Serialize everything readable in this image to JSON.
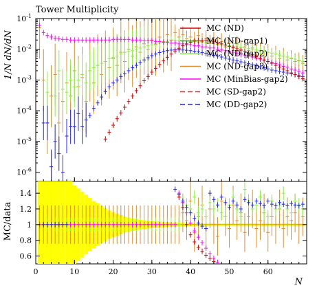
{
  "chart_data": {
    "type": "scatter",
    "title": "Tower Multiplicity",
    "xlabel": "N",
    "ylabel": "1/N dN/dN",
    "ratio_ylabel": "MC/data",
    "xlim": [
      0,
      70
    ],
    "ylim": [
      5e-07,
      0.1
    ],
    "yscale": "log",
    "ratio_ylim": [
      0.5,
      1.55
    ],
    "x_ticks": [
      "0",
      "10",
      "20",
      "30",
      "40",
      "50",
      "60"
    ],
    "y_ticks": [
      "10^-6",
      "10^-5",
      "10^-4",
      "10^-3",
      "10^-2",
      "10^-1"
    ],
    "ratio_ticks": [
      "0.6",
      "0.8",
      "1",
      "1.2",
      "1.4"
    ],
    "legend_position": "top-right",
    "x": [
      1,
      2,
      3,
      4,
      5,
      6,
      7,
      8,
      9,
      10,
      11,
      12,
      13,
      14,
      15,
      16,
      17,
      18,
      19,
      20,
      21,
      22,
      23,
      24,
      25,
      26,
      27,
      28,
      29,
      30,
      31,
      32,
      33,
      34,
      35,
      36,
      37,
      38,
      39,
      40,
      41,
      42,
      43,
      44,
      45,
      46,
      47,
      48,
      49,
      50,
      51,
      52,
      53,
      54,
      55,
      56,
      57,
      58,
      59,
      60,
      61,
      62,
      63,
      64,
      65,
      66,
      67,
      68,
      69
    ],
    "data_band": {
      "name": "data",
      "color": "#ffff00",
      "rel_err": [
        0.95,
        0.9,
        0.85,
        0.8,
        0.75,
        0.7,
        0.65,
        0.6,
        0.55,
        0.5,
        0.46,
        0.42,
        0.38,
        0.34,
        0.3,
        0.27,
        0.24,
        0.21,
        0.18,
        0.16,
        0.14,
        0.12,
        0.1,
        0.09,
        0.08,
        0.07,
        0.06,
        0.055,
        0.05,
        0.045,
        0.04,
        0.037,
        0.034,
        0.031,
        0.028,
        0.026,
        0.024,
        0.022,
        0.02,
        0.019,
        0.018,
        0.017,
        0.016,
        0.015,
        0.015,
        0.015,
        0.015,
        0.015,
        0.015,
        0.015,
        0.015,
        0.015,
        0.015,
        0.015,
        0.015,
        0.015,
        0.015,
        0.015,
        0.015,
        0.015,
        0.015,
        0.015,
        0.015,
        0.015,
        0.015,
        0.015,
        0.015,
        0.015,
        0.015
      ]
    },
    "series": [
      {
        "name": "MC (ND)",
        "color": "#cc0000",
        "style": "solid"
      },
      {
        "name": "MC (ND-gap1)",
        "color": "#22aa22",
        "style": "solid"
      },
      {
        "name": "MC (ND-gap2)",
        "color": "#88ee44",
        "style": "solid"
      },
      {
        "name": "MC (ND-gap3)",
        "color": "#e08a2e",
        "style": "solid"
      },
      {
        "name": "MC (MinBias-gap2)",
        "color": "#ff00ff",
        "style": "solid"
      },
      {
        "name": "MC (SD-gap2)",
        "color": "#ff2222",
        "style": "dashed"
      },
      {
        "name": "MC (DD-gap2)",
        "color": "#2222ee",
        "style": "dashed"
      }
    ],
    "points": {
      "red": {
        "x": [
          18,
          19,
          20,
          21,
          22,
          23,
          24,
          25,
          26,
          27,
          28,
          29,
          30,
          31,
          32,
          33,
          34,
          35,
          36,
          37,
          38,
          39,
          40,
          41,
          42,
          43,
          44,
          45,
          46,
          47,
          48,
          49,
          50,
          51,
          52,
          53,
          54,
          55,
          56,
          57,
          58,
          59,
          60,
          61,
          62,
          63,
          64,
          65,
          66,
          67,
          68,
          69
        ],
        "y": [
          1.2e-05,
          2e-05,
          3.4e-05,
          5.5e-05,
          8.5e-05,
          0.00013,
          0.0002,
          0.0003,
          0.00045,
          0.00065,
          0.00095,
          0.0013,
          0.0018,
          0.0024,
          0.0032,
          0.0042,
          0.0055,
          0.007,
          0.0088,
          0.0108,
          0.013,
          0.015,
          0.017,
          0.0185,
          0.019,
          0.0192,
          0.019,
          0.0185,
          0.0175,
          0.016,
          0.015,
          0.0138,
          0.0125,
          0.0115,
          0.0104,
          0.0093,
          0.0083,
          0.0074,
          0.0066,
          0.0058,
          0.0051,
          0.0045,
          0.004,
          0.0035,
          0.003,
          0.0026,
          0.0023,
          0.002,
          0.0017,
          0.0015,
          0.0013,
          0.0011
        ],
        "ratio": [
          null,
          null,
          null,
          null,
          null,
          null,
          null,
          null,
          null,
          null,
          null,
          null,
          null,
          null,
          null,
          null,
          null,
          null,
          null,
          1.35,
          1.22,
          1.0,
          0.87,
          0.78,
          0.71,
          0.66,
          0.61,
          0.57,
          0.53,
          null,
          null,
          null,
          null,
          null,
          null,
          null,
          null,
          null,
          null,
          null,
          null,
          null,
          null,
          null,
          null,
          null,
          null,
          null,
          null,
          null,
          null,
          null
        ]
      },
      "blue": {
        "x": [
          2,
          3,
          4,
          5,
          6,
          7,
          8,
          9,
          10,
          11,
          12,
          13,
          14,
          15,
          16,
          17,
          18,
          19,
          20,
          21,
          22,
          23,
          24,
          25,
          26,
          27,
          28,
          29,
          30,
          31,
          32,
          33,
          34,
          35,
          36,
          37,
          38,
          39,
          40,
          41,
          42,
          43,
          44,
          45,
          46,
          47,
          48,
          49,
          50,
          51,
          52,
          53,
          54,
          55,
          56,
          57,
          58,
          59,
          60,
          61,
          62,
          63,
          64,
          65,
          66,
          67,
          68,
          69
        ],
        "y": [
          4e-05,
          4e-05,
          1.5e-06,
          1e-05,
          4e-06,
          1e-06,
          1.5e-05,
          3e-05,
          3e-05,
          8e-05,
          3e-05,
          5e-05,
          7e-05,
          0.00012,
          0.00018,
          0.00028,
          0.00042,
          0.0006,
          0.0008,
          0.001,
          0.0013,
          0.0016,
          0.002,
          0.0025,
          0.003,
          0.0037,
          0.0045,
          0.0053,
          0.0062,
          0.007,
          0.0078,
          0.0085,
          0.009,
          0.0094,
          0.0096,
          0.0096,
          0.0095,
          0.0093,
          0.009,
          0.0086,
          0.0082,
          0.0078,
          0.0073,
          0.0068,
          0.0064,
          0.006,
          0.0056,
          0.0052,
          0.0048,
          0.0045,
          0.0042,
          0.0039,
          0.0036,
          0.0034,
          0.0031,
          0.0029,
          0.0027,
          0.0025,
          0.0023,
          0.0021,
          0.002,
          0.0019,
          0.0018,
          0.0017,
          0.0016,
          0.0015,
          0.0014,
          0.0013
        ],
        "ratio": [
          1,
          1,
          1,
          1,
          1,
          1,
          1,
          null,
          null,
          null,
          null,
          null,
          null,
          null,
          null,
          null,
          null,
          null,
          null,
          null,
          null,
          null,
          null,
          null,
          null,
          null,
          null,
          null,
          null,
          null,
          null,
          null,
          null,
          null,
          1.45,
          1.38,
          1.3,
          1.22,
          1.15,
          1.08,
          1.02,
          0.98,
          0.95,
          1.4,
          1.32,
          1.25,
          1.35,
          1.28,
          1.22,
          1.3,
          1.25,
          1.2,
          1.32,
          1.28,
          1.25,
          1.3,
          1.27,
          1.24,
          1.3,
          1.26,
          1.24,
          1.28,
          1.26,
          1.24,
          1.27,
          1.25,
          1.24,
          1.26
        ]
      },
      "green": {
        "x": [
          3,
          5,
          6,
          7,
          8,
          9,
          10,
          11,
          12,
          13,
          14,
          15,
          16,
          17,
          18,
          19,
          20,
          21,
          22,
          23,
          24,
          25,
          26,
          27,
          28,
          29,
          30,
          31,
          32,
          33,
          34,
          35,
          36,
          37,
          38,
          39,
          40,
          41,
          42,
          43,
          44,
          45,
          46,
          47,
          48,
          49,
          50,
          51,
          52,
          53,
          54,
          55,
          56,
          57,
          58,
          59,
          60,
          61,
          62,
          63,
          64,
          65,
          66,
          67,
          68,
          69
        ],
        "y": [
          0.0004,
          0.0003,
          0.002,
          0.0005,
          0.0004,
          0.001,
          0.0006,
          0.001,
          0.0015,
          0.0008,
          0.002,
          0.0025,
          0.003,
          0.0035,
          0.004,
          0.005,
          0.0055,
          0.006,
          0.007,
          0.008,
          0.0085,
          0.009,
          0.01,
          0.011,
          0.012,
          0.013,
          0.014,
          0.015,
          0.016,
          0.017,
          0.018,
          0.0185,
          0.019,
          0.019,
          0.019,
          0.0185,
          0.018,
          0.0175,
          0.017,
          0.0165,
          0.016,
          0.0155,
          0.015,
          0.0145,
          0.014,
          0.0135,
          0.013,
          0.0125,
          0.012,
          0.0115,
          0.011,
          0.0105,
          0.01,
          0.0095,
          0.009,
          0.0085,
          0.008,
          0.0075,
          0.007,
          0.0065,
          0.006,
          0.0056,
          0.0052,
          0.0048,
          0.0044,
          0.004
        ],
        "ratio": [
          1,
          1,
          1,
          1,
          1,
          1,
          1,
          1,
          1,
          1,
          1,
          1,
          1,
          1,
          1,
          1,
          1,
          1,
          1,
          1,
          1,
          1,
          1,
          1,
          1,
          1,
          1,
          1,
          1,
          1,
          1,
          1,
          1,
          1,
          1.3,
          1.25,
          1.2,
          1.35,
          1.15,
          1.2,
          1.1,
          1.28,
          1.2,
          1.25,
          1.15,
          1.1,
          1.25,
          1.35,
          1.2,
          1.1,
          1.45,
          1.3,
          1.2,
          1.25,
          1.35,
          1.15,
          1.1,
          1.3,
          1.2,
          1.25,
          1.4,
          1.2,
          1.15,
          1.3,
          1.25,
          1.2
        ]
      },
      "orange": {
        "x": [
          1,
          2,
          3,
          4,
          5,
          6,
          7,
          8,
          9,
          10,
          11,
          12,
          13,
          14,
          15,
          16,
          17,
          18,
          19,
          20,
          21,
          22,
          23,
          24,
          25,
          26,
          27,
          28,
          29,
          30,
          31,
          32,
          33,
          34,
          35,
          36,
          37,
          38,
          39,
          40,
          41,
          42,
          43,
          44,
          45,
          46,
          47,
          48,
          49,
          50,
          51,
          52,
          53,
          54,
          55,
          56,
          57,
          58,
          59,
          60,
          61,
          62,
          63,
          64,
          65,
          66,
          67,
          68,
          69
        ],
        "y": [
          0.05,
          0.001,
          4e-05,
          0.0003,
          0.0015,
          4e-05,
          0.0002,
          0.0008,
          0.0003,
          0.002,
          0.0006,
          0.0012,
          0.0002,
          0.002,
          0.0008,
          0.003,
          0.0015,
          0.004,
          0.0025,
          0.005,
          0.003,
          0.008,
          0.004,
          0.01,
          0.006,
          0.012,
          0.008,
          0.015,
          0.01,
          0.02,
          0.014,
          0.025,
          0.018,
          0.03,
          0.02,
          0.035,
          0.025,
          0.03,
          0.022,
          0.025,
          0.02,
          0.028,
          0.018,
          0.022,
          0.016,
          0.02,
          0.014,
          0.018,
          0.012,
          0.016,
          0.011,
          0.014,
          0.01,
          0.012,
          0.009,
          0.011,
          0.008,
          0.009,
          0.007,
          0.008,
          0.006,
          0.007,
          0.005,
          0.006,
          0.0045,
          0.005,
          0.004,
          0.0042,
          0.0035
        ],
        "ratio": [
          1,
          1,
          1,
          1,
          1,
          1,
          1,
          1,
          1,
          1,
          1,
          1,
          1,
          1,
          1,
          1,
          1,
          1,
          1,
          1,
          1,
          1,
          1,
          1,
          1,
          1,
          1,
          1,
          1,
          1,
          1,
          1,
          1,
          1,
          1,
          1,
          1,
          1.15,
          1.05,
          1.3,
          0.9,
          1.1,
          1.25,
          0.95,
          1.2,
          1.0,
          0.85,
          1.3,
          1.1,
          0.95,
          1.25,
          1.05,
          1.15,
          0.9,
          1.1,
          1.2,
          0.95,
          1.05,
          1.15,
          0.9,
          1.1,
          1.0,
          1.2,
          0.95,
          1.1,
          1.05,
          1.15,
          1.0,
          1.1
        ]
      },
      "magenta": {
        "x": [
          1,
          2,
          3,
          4,
          5,
          6,
          7,
          8,
          9,
          10,
          11,
          12,
          13,
          14,
          15,
          16,
          17,
          18,
          19,
          20,
          21,
          22,
          23,
          24,
          25,
          26,
          27,
          28,
          29,
          30,
          31,
          32,
          33,
          34,
          35,
          36,
          37,
          38,
          39,
          40,
          41,
          42,
          43,
          44,
          45,
          46,
          47,
          48,
          49,
          50,
          51,
          52,
          53,
          54,
          55,
          56,
          57,
          58,
          59,
          60,
          61,
          62,
          63,
          64,
          65,
          66,
          67,
          68,
          69
        ],
        "y": [
          0.06,
          0.035,
          0.028,
          0.025,
          0.023,
          0.022,
          0.021,
          0.021,
          0.02,
          0.02,
          0.02,
          0.02,
          0.02,
          0.02,
          0.02,
          0.02,
          0.02,
          0.02,
          0.02,
          0.021,
          0.021,
          0.021,
          0.021,
          0.021,
          0.02,
          0.02,
          0.02,
          0.019,
          0.019,
          0.019,
          0.018,
          0.018,
          0.017,
          0.017,
          0.016,
          0.016,
          0.015,
          0.015,
          0.014,
          0.014,
          0.013,
          0.013,
          0.012,
          0.012,
          0.011,
          0.011,
          0.01,
          0.0095,
          0.009,
          0.0085,
          0.008,
          0.0075,
          0.007,
          0.0065,
          0.006,
          0.0056,
          0.0052,
          0.0048,
          0.0044,
          0.004,
          0.0037,
          0.0034,
          0.0031,
          0.0028,
          0.0026,
          0.0023,
          0.0021,
          0.0019,
          0.0017
        ],
        "ratio": [
          1,
          1,
          1,
          1,
          1,
          1,
          1,
          1,
          1,
          1,
          1,
          1,
          1,
          1,
          1,
          1,
          1,
          1,
          1,
          1,
          1,
          1,
          1,
          1,
          1,
          1,
          1,
          1,
          1,
          1,
          1,
          1,
          1,
          1,
          1,
          1,
          1.4,
          1.28,
          1.15,
          1.02,
          0.92,
          0.84,
          0.77,
          0.7,
          0.63,
          0.57,
          0.52,
          null,
          null,
          null,
          null,
          null,
          null,
          null,
          null,
          null,
          null,
          null,
          null,
          null,
          null,
          null,
          null,
          null,
          null,
          null,
          null,
          null,
          null
        ]
      }
    }
  }
}
